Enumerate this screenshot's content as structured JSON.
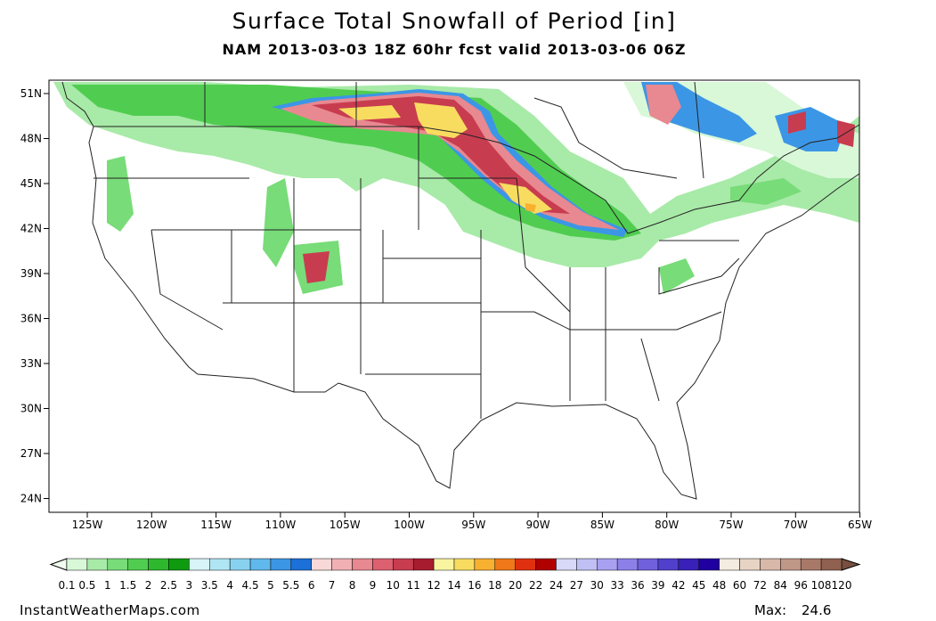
{
  "header": {
    "title": "Surface Total Snowfall of Period [in]",
    "subtitle": "NAM 2013-03-03 18Z 60hr fcst valid 2013-03-06 06Z"
  },
  "map": {
    "lat_labels": [
      "51N",
      "48N",
      "45N",
      "42N",
      "39N",
      "36N",
      "33N",
      "30N",
      "27N",
      "24N"
    ],
    "lon_labels": [
      "125W",
      "120W",
      "115W",
      "110W",
      "105W",
      "100W",
      "95W",
      "90W",
      "85W",
      "80W",
      "75W",
      "70W",
      "65W"
    ]
  },
  "colorbar": {
    "labels": [
      0.1,
      0.5,
      1,
      1.5,
      2,
      2.5,
      3,
      3.5,
      4,
      4.5,
      5,
      5.5,
      6,
      7,
      8,
      9,
      10,
      11,
      12,
      14,
      16,
      18,
      20,
      22,
      24,
      27,
      30,
      33,
      36,
      39,
      42,
      45,
      48,
      60,
      72,
      84,
      96,
      108,
      120
    ],
    "colors": [
      "#d8f8d8",
      "#a8eaa8",
      "#78dc78",
      "#50cd50",
      "#2db82d",
      "#109a10",
      "#d8f4f8",
      "#b0e6f4",
      "#88d2f0",
      "#60b8ec",
      "#3c96e6",
      "#1c70d8",
      "#f8d8d8",
      "#f0b0b4",
      "#e88890",
      "#dc6070",
      "#c83c50",
      "#a81c30",
      "#f8f4a0",
      "#f8dc60",
      "#f8b030",
      "#f07818",
      "#e03010",
      "#b00000",
      "#d8d8f8",
      "#c0c0f4",
      "#a8a0f0",
      "#8c80e8",
      "#7060dc",
      "#5040cc",
      "#3820b8",
      "#2000a0",
      "#f4ece0",
      "#e8d4c4",
      "#d8b8a8",
      "#c09888",
      "#a87868",
      "#906050"
    ],
    "under_color": "#f0fff0",
    "over_color": "#785040"
  },
  "footer": {
    "source": "InstantWeatherMaps.com",
    "max_label": "Max:",
    "max_value": 24.6
  }
}
